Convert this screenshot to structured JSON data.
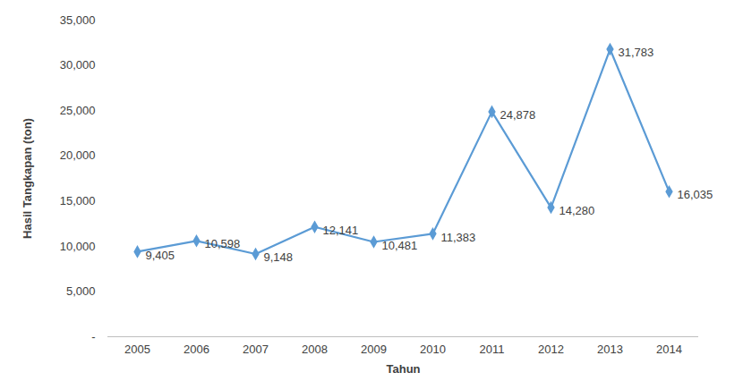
{
  "chart_data": {
    "type": "line",
    "x_label": "Tahun",
    "y_label": "Hasil Tangkapan (ton)",
    "categories": [
      "2005",
      "2006",
      "2007",
      "2008",
      "2009",
      "2010",
      "2011",
      "2012",
      "2013",
      "2014"
    ],
    "values": [
      9405,
      10598,
      9148,
      12141,
      10481,
      11383,
      24878,
      14280,
      31783,
      16035
    ],
    "value_labels": [
      "9,405",
      "10,598",
      "9,148",
      "12,141",
      "10,481",
      "11,383",
      "24,878",
      "14,280",
      "31,783",
      "16,035"
    ],
    "color": "#5b9bd5",
    "marker": "diamond",
    "data_labels": true,
    "grid": false,
    "ylim": [
      0,
      35000
    ],
    "yticks": [
      {
        "value": 0,
        "label": "-"
      },
      {
        "value": 5000,
        "label": "5,000"
      },
      {
        "value": 10000,
        "label": "10,000"
      },
      {
        "value": 15000,
        "label": "15,000"
      },
      {
        "value": 20000,
        "label": "20,000"
      },
      {
        "value": 25000,
        "label": "25,000"
      },
      {
        "value": 30000,
        "label": "30,000"
      },
      {
        "value": 35000,
        "label": "35,000"
      }
    ]
  }
}
